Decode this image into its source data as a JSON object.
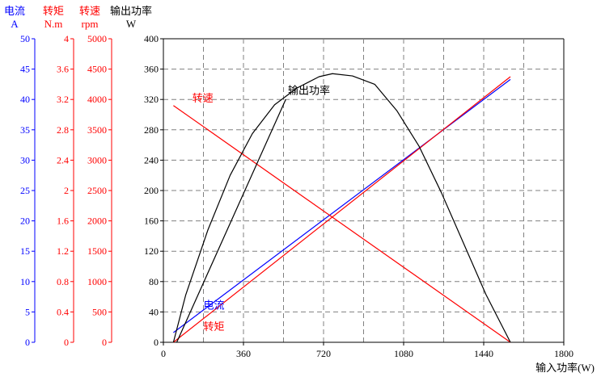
{
  "chart_data": {
    "type": "line",
    "x_axis": {
      "label": "输入功率(W)",
      "min": 0,
      "max": 1800,
      "ticks": [
        0,
        360,
        720,
        1080,
        1440,
        1800
      ],
      "grid_step": 180,
      "grid": "dashed"
    },
    "y_axes": [
      {
        "id": "current",
        "title": "电流",
        "unit": "A",
        "color": "#0000ff",
        "min": 0,
        "max": 50,
        "ticks": [
          0,
          5,
          10,
          15,
          20,
          25,
          30,
          35,
          40,
          45,
          50
        ]
      },
      {
        "id": "torque",
        "title": "转矩",
        "unit": "N.m",
        "color": "#ff0000",
        "min": 0,
        "max": 4,
        "ticks": [
          0,
          0.4,
          0.8,
          1.2,
          1.6,
          2,
          2.4,
          2.8,
          3.2,
          3.6,
          4
        ]
      },
      {
        "id": "speed",
        "title": "转速",
        "unit": "rpm",
        "color": "#ff0000",
        "min": 0,
        "max": 5000,
        "ticks": [
          0,
          500,
          1000,
          1500,
          2000,
          2500,
          3000,
          3500,
          4000,
          4500,
          5000
        ]
      },
      {
        "id": "power",
        "title": "输出功率",
        "unit": "W",
        "color": "#000000",
        "min": 0,
        "max": 400,
        "ticks": [
          0,
          40,
          80,
          120,
          160,
          200,
          240,
          280,
          320,
          360,
          400
        ]
      }
    ],
    "series": [
      {
        "name": "电流",
        "axis": "current",
        "color": "#0000ff",
        "x": [
          45,
          1560
        ],
        "y": [
          1.6,
          43.3
        ]
      },
      {
        "name": "转矩",
        "axis": "torque",
        "color": "#ff0000",
        "x": [
          45,
          1560
        ],
        "y": [
          0,
          3.5
        ]
      },
      {
        "name": "转速",
        "axis": "speed",
        "color": "#ff0000",
        "x": [
          45,
          1560
        ],
        "y": [
          3900,
          0
        ]
      },
      {
        "name": "输出功率",
        "axis": "power",
        "color": "#000000",
        "x": [
          45,
          100,
          200,
          300,
          400,
          500,
          600,
          700,
          760,
          850,
          950,
          1050,
          1150,
          1250,
          1350,
          1450,
          1560
        ],
        "y": [
          0,
          62,
          148,
          220,
          275,
          313,
          335,
          350,
          354,
          351,
          340,
          305,
          258,
          197,
          130,
          63,
          0
        ]
      },
      {
        "name": "",
        "axis": "power",
        "color": "#000000",
        "x": [
          60,
          550
        ],
        "y": [
          0,
          320
        ]
      }
    ],
    "annotations": [
      {
        "text": "转速",
        "color": "#ff0000",
        "x": 130,
        "y_axis": "power",
        "y": 317
      },
      {
        "text": "输出功率",
        "color": "#000000",
        "x": 560,
        "y_axis": "power",
        "y": 327
      },
      {
        "text": "电流",
        "color": "#0000ff",
        "x": 180,
        "y_axis": "power",
        "y": 44
      },
      {
        "text": "转矩",
        "color": "#ff0000",
        "x": 180,
        "y_axis": "power",
        "y": 16
      }
    ]
  }
}
